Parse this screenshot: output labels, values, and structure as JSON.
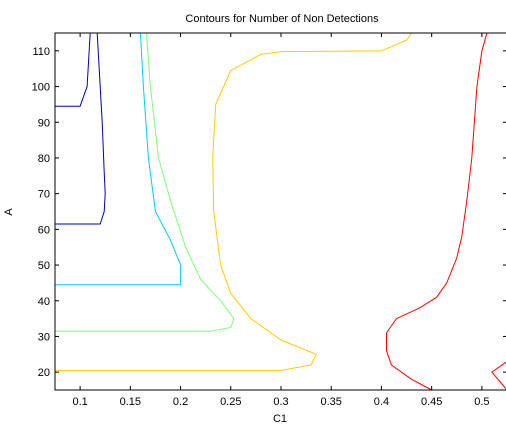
{
  "chart_data": {
    "type": "contour",
    "title": "Contours for Number of Non Detections",
    "xlabel": "C1",
    "ylabel": "A",
    "xlim": [
      0.075,
      0.525
    ],
    "ylim": [
      15,
      115
    ],
    "xticks": [
      0.1,
      0.15,
      0.2,
      0.25,
      0.3,
      0.35,
      0.4,
      0.45,
      0.5
    ],
    "xtick_labels": [
      "0.1",
      "0.15",
      "0.2",
      "0.25",
      "0.3",
      "0.35",
      "0.4",
      "0.45",
      "0.5"
    ],
    "yticks": [
      20,
      30,
      40,
      50,
      60,
      70,
      80,
      90,
      100,
      110
    ],
    "ytick_labels": [
      "20",
      "30",
      "40",
      "50",
      "60",
      "70",
      "80",
      "90",
      "100",
      "110"
    ],
    "grid": false,
    "legend": false,
    "series": [
      {
        "color": "#0000b4",
        "segments": [
          [
            [
              0.075,
              94.5
            ],
            [
              0.1,
              94.5
            ],
            [
              0.107,
              100
            ],
            [
              0.11,
              115
            ]
          ],
          [
            [
              0.075,
              61.5
            ],
            [
              0.12,
              61.5
            ],
            [
              0.124,
              65
            ],
            [
              0.125,
              70
            ],
            [
              0.124,
              76
            ],
            [
              0.122,
              90
            ],
            [
              0.12,
              100
            ],
            [
              0.118,
              110
            ],
            [
              0.117,
              115
            ]
          ]
        ]
      },
      {
        "color": "#00ccff",
        "segments": [
          [
            [
              0.075,
              44.5
            ],
            [
              0.2,
              44.5
            ],
            [
              0.2,
              50
            ],
            [
              0.19,
              57
            ],
            [
              0.175,
              65
            ],
            [
              0.168,
              80
            ],
            [
              0.163,
              100
            ],
            [
              0.16,
              115
            ]
          ]
        ]
      },
      {
        "color": "#7fff7f",
        "segments": [
          [
            [
              0.075,
              31.5
            ],
            [
              0.23,
              31.5
            ],
            [
              0.25,
              32.5
            ],
            [
              0.253,
              35
            ],
            [
              0.24,
              40
            ],
            [
              0.22,
              46
            ],
            [
              0.205,
              55
            ],
            [
              0.19,
              68
            ],
            [
              0.178,
              80
            ],
            [
              0.17,
              100
            ],
            [
              0.166,
              115
            ]
          ]
        ]
      },
      {
        "color": "#ffcc00",
        "segments": [
          [
            [
              0.075,
              20.5
            ],
            [
              0.3,
              20.5
            ],
            [
              0.33,
              22
            ],
            [
              0.335,
              25
            ],
            [
              0.3,
              29
            ],
            [
              0.27,
              35
            ],
            [
              0.25,
              42
            ],
            [
              0.24,
              50
            ],
            [
              0.233,
              65
            ],
            [
              0.232,
              80
            ],
            [
              0.235,
              95
            ],
            [
              0.25,
              104.5
            ],
            [
              0.28,
              109
            ],
            [
              0.3,
              109.8
            ],
            [
              0.4,
              110
            ],
            [
              0.425,
              113
            ],
            [
              0.43,
              115
            ]
          ]
        ]
      },
      {
        "color": "#ff0000",
        "segments": [
          [
            [
              0.45,
              15
            ],
            [
              0.43,
              18
            ],
            [
              0.41,
              22
            ],
            [
              0.405,
              26
            ],
            [
              0.405,
              31
            ],
            [
              0.415,
              35
            ],
            [
              0.438,
              38
            ],
            [
              0.455,
              41
            ],
            [
              0.465,
              45
            ],
            [
              0.475,
              52
            ],
            [
              0.48,
              58
            ],
            [
              0.485,
              68
            ],
            [
              0.49,
              80
            ],
            [
              0.495,
              100
            ],
            [
              0.5,
              110
            ],
            [
              0.505,
              115
            ]
          ],
          [
            [
              0.525,
              23
            ],
            [
              0.51,
              20
            ],
            [
              0.525,
              15
            ]
          ]
        ]
      }
    ]
  }
}
